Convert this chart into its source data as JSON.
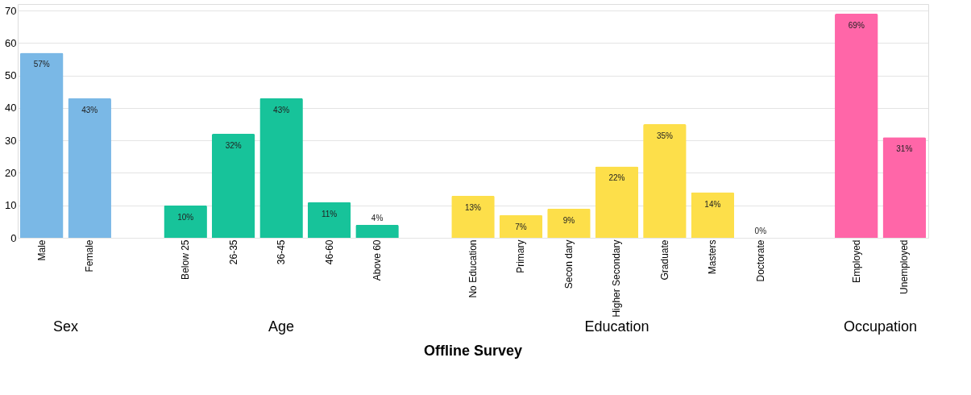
{
  "chart_data": {
    "type": "bar",
    "title": "Offline Survey",
    "categories": [
      "Male",
      "Female",
      null,
      "Below 25",
      "26-35",
      "36-45",
      "46-60",
      "Above 60",
      null,
      "No Education",
      "Primary",
      "Secon dary",
      "Higher Secondary",
      "Graduate",
      "Masters",
      "Doctorate",
      null,
      "Employed",
      "Unemployed"
    ],
    "values": [
      57,
      43,
      null,
      10,
      32,
      43,
      11,
      4,
      null,
      13,
      7,
      9,
      22,
      35,
      14,
      0,
      null,
      69,
      31
    ],
    "value_labels": [
      "57%",
      "43%",
      null,
      "10%",
      "32%",
      "43%",
      "11%",
      "4%",
      null,
      "13%",
      "7%",
      "9%",
      "22%",
      "35%",
      "14%",
      "0%",
      null,
      "69%",
      "31%"
    ],
    "colors": [
      "#7ab8e6",
      "#7ab8e6",
      null,
      "#17c39a",
      "#17c39a",
      "#17c39a",
      "#17c39a",
      "#17c39a",
      null,
      "#fddf4a",
      "#fddf4a",
      "#fddf4a",
      "#fddf4a",
      "#fddf4a",
      "#fddf4a",
      "#fddf4a",
      null,
      "#ff66a8",
      "#ff66a8"
    ],
    "annotations": [
      "Sex",
      "Age",
      "Education",
      "Occupation"
    ],
    "ylim": [
      0,
      72
    ],
    "yticks": [
      0,
      10,
      20,
      30,
      40,
      50,
      60,
      70
    ],
    "grid": "y"
  }
}
